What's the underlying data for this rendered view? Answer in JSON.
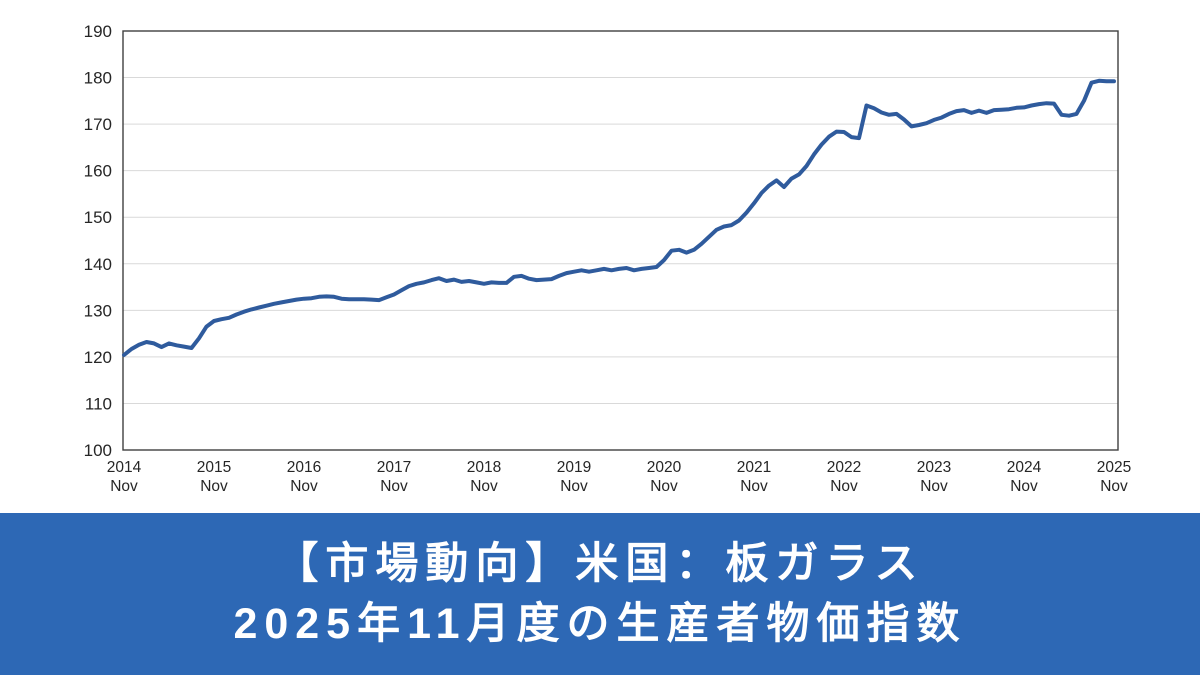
{
  "banner": {
    "line1": "【市場動向】米国：板ガラス",
    "line2": "2025年11月度の生産者物価指数",
    "background_color": "#2d68b5",
    "text_color": "#ffffff"
  },
  "chart_data": {
    "type": "line",
    "title": "",
    "xlabel": "",
    "ylabel": "",
    "ylim": [
      100,
      190
    ],
    "y_tick_step": 10,
    "y_ticks": [
      100,
      110,
      120,
      130,
      140,
      150,
      160,
      170,
      180,
      190
    ],
    "grid": "horizontal",
    "legend": "none",
    "axis_text_color": "#262626",
    "gridline_color": "#d9d9d9",
    "plot_border_color": "#404040",
    "x_tick_labels": [
      {
        "year": "2014",
        "month": "Nov"
      },
      {
        "year": "2015",
        "month": "Nov"
      },
      {
        "year": "2016",
        "month": "Nov"
      },
      {
        "year": "2017",
        "month": "Nov"
      },
      {
        "year": "2018",
        "month": "Nov"
      },
      {
        "year": "2019",
        "month": "Nov"
      },
      {
        "year": "2020",
        "month": "Nov"
      },
      {
        "year": "2021",
        "month": "Nov"
      },
      {
        "year": "2022",
        "month": "Nov"
      },
      {
        "year": "2023",
        "month": "Nov"
      },
      {
        "year": "2024",
        "month": "Nov"
      },
      {
        "year": "2025",
        "month": "Nov"
      }
    ],
    "months_per_tick": 12,
    "series": [
      {
        "name": "US Producer Price Index: Flat Glass",
        "color": "#2f5b9d",
        "line_width": 4,
        "start": "2014-11",
        "end": "2025-11",
        "values": [
          120.4,
          121.7,
          122.6,
          123.2,
          122.9,
          122.1,
          122.9,
          122.5,
          122.2,
          121.9,
          124.0,
          126.5,
          127.7,
          128.1,
          128.4,
          129.1,
          129.7,
          130.2,
          130.6,
          131.0,
          131.4,
          131.7,
          132.0,
          132.3,
          132.5,
          132.6,
          132.9,
          133.0,
          132.9,
          132.5,
          132.4,
          132.4,
          132.4,
          132.3,
          132.2,
          132.8,
          133.4,
          134.3,
          135.2,
          135.7,
          136.0,
          136.5,
          136.9,
          136.3,
          136.6,
          136.1,
          136.3,
          136.0,
          135.7,
          136.0,
          135.9,
          135.9,
          137.2,
          137.4,
          136.8,
          136.5,
          136.6,
          136.7,
          137.4,
          138.0,
          138.3,
          138.6,
          138.3,
          138.6,
          138.9,
          138.6,
          138.9,
          139.1,
          138.6,
          138.9,
          139.1,
          139.3,
          140.8,
          142.8,
          143.0,
          142.4,
          143.0,
          144.3,
          145.8,
          147.3,
          148.0,
          148.3,
          149.3,
          151.0,
          153.0,
          155.2,
          156.8,
          157.9,
          156.5,
          158.3,
          159.2,
          161.0,
          163.5,
          165.6,
          167.3,
          168.4,
          168.3,
          167.2,
          167.0,
          174.0,
          173.4,
          172.5,
          172.0,
          172.2,
          171.0,
          169.5,
          169.8,
          170.2,
          170.9,
          171.4,
          172.2,
          172.8,
          173.0,
          172.4,
          172.9,
          172.4,
          173.0,
          173.1,
          173.2,
          173.5,
          173.6,
          174.0,
          174.3,
          174.5,
          174.4,
          172.0,
          171.8,
          172.2,
          175.0,
          178.9,
          179.3,
          179.2,
          179.2
        ]
      }
    ]
  }
}
